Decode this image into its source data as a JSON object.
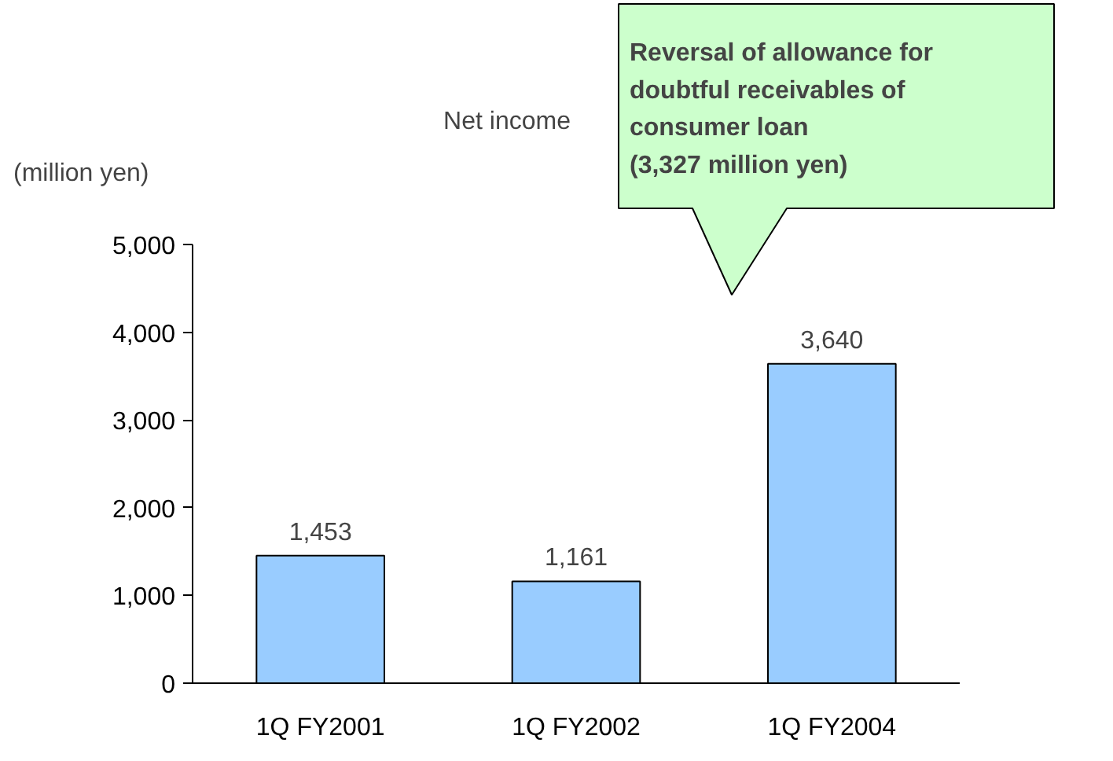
{
  "chart_data": {
    "type": "bar",
    "title": "Net income",
    "ylabel": "(million yen)",
    "categories": [
      "1Q FY2001",
      "1Q FY2002",
      "1Q FY2004"
    ],
    "values": [
      1453,
      1161,
      3640
    ],
    "color": "#99ccff",
    "ylim": [
      0,
      5000
    ],
    "yticks": [
      {
        "value": 0,
        "label": "0"
      },
      {
        "value": 1000,
        "label": "1,000"
      },
      {
        "value": 2000,
        "label": "2,000"
      },
      {
        "value": 3000,
        "label": "3,000"
      },
      {
        "value": 4000,
        "label": "4,000"
      },
      {
        "value": 5000,
        "label": "5,000"
      }
    ],
    "value_labels": [
      "1,453",
      "1,161",
      "3,640"
    ],
    "annotations": [
      "Reversal of allowance for\ndoubtful receivables of\nconsumer loan\n (3,327 million yen)"
    ],
    "grid": false
  }
}
